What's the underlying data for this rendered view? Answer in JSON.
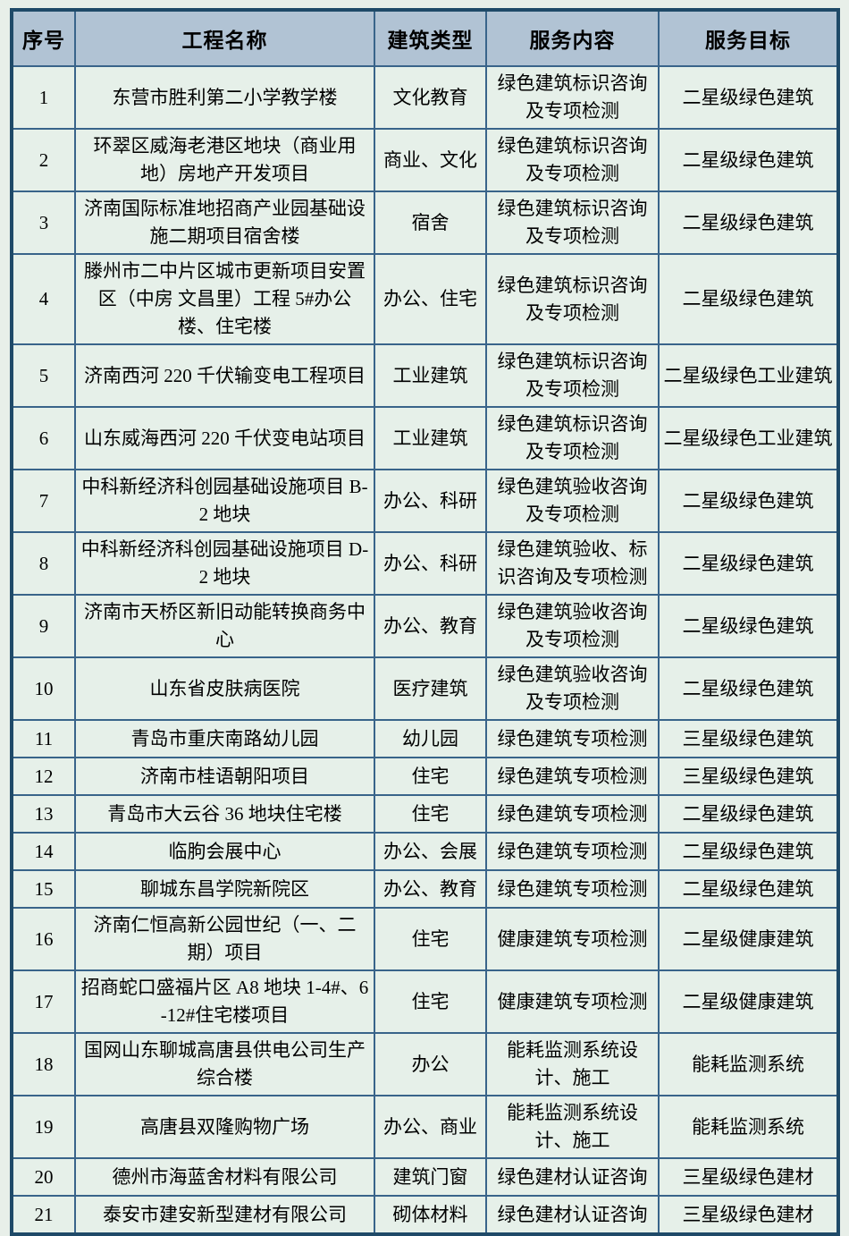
{
  "colors": {
    "page_background": "#e8efe9",
    "header_background": "#b1c3d4",
    "row_background": "#e6f0e9",
    "grid_border": "#39648a",
    "outer_border": "#1f4a68",
    "text": "#000000"
  },
  "table": {
    "columns": [
      "序号",
      "工程名称",
      "建筑类型",
      "服务内容",
      "服务目标"
    ],
    "rows": [
      {
        "no": "1",
        "name": "东营市胜利第二小学教学楼",
        "type": "文化教育",
        "service": "绿色建筑标识咨询及专项检测",
        "target": "二星级绿色建筑"
      },
      {
        "no": "2",
        "name": "环翠区威海老港区地块（商业用地）房地产开发项目",
        "type": "商业、文化",
        "service": "绿色建筑标识咨询及专项检测",
        "target": "二星级绿色建筑"
      },
      {
        "no": "3",
        "name": "济南国际标准地招商产业园基础设施二期项目宿舍楼",
        "type": "宿舍",
        "service": "绿色建筑标识咨询及专项检测",
        "target": "二星级绿色建筑"
      },
      {
        "no": "4",
        "name": "滕州市二中片区城市更新项目安置区（中房 文昌里）工程 5#办公楼、住宅楼",
        "type": "办公、住宅",
        "service": "绿色建筑标识咨询及专项检测",
        "target": "二星级绿色建筑"
      },
      {
        "no": "5",
        "name": "济南西河 220 千伏输变电工程项目",
        "type": "工业建筑",
        "service": "绿色建筑标识咨询及专项检测",
        "target": "二星级绿色工业建筑"
      },
      {
        "no": "6",
        "name": "山东威海西河 220 千伏变电站项目",
        "type": "工业建筑",
        "service": "绿色建筑标识咨询及专项检测",
        "target": "二星级绿色工业建筑"
      },
      {
        "no": "7",
        "name": "中科新经济科创园基础设施项目 B-2 地块",
        "type": "办公、科研",
        "service": "绿色建筑验收咨询及专项检测",
        "target": "二星级绿色建筑"
      },
      {
        "no": "8",
        "name": "中科新经济科创园基础设施项目 D-2 地块",
        "type": "办公、科研",
        "service": "绿色建筑验收、标识咨询及专项检测",
        "target": "二星级绿色建筑"
      },
      {
        "no": "9",
        "name": "济南市天桥区新旧动能转换商务中心",
        "type": "办公、教育",
        "service": "绿色建筑验收咨询及专项检测",
        "target": "二星级绿色建筑"
      },
      {
        "no": "10",
        "name": "山东省皮肤病医院",
        "type": "医疗建筑",
        "service": "绿色建筑验收咨询及专项检测",
        "target": "二星级绿色建筑"
      },
      {
        "no": "11",
        "name": "青岛市重庆南路幼儿园",
        "type": "幼儿园",
        "service": "绿色建筑专项检测",
        "target": "三星级绿色建筑"
      },
      {
        "no": "12",
        "name": "济南市桂语朝阳项目",
        "type": "住宅",
        "service": "绿色建筑专项检测",
        "target": "三星级绿色建筑"
      },
      {
        "no": "13",
        "name": "青岛市大云谷 36 地块住宅楼",
        "type": "住宅",
        "service": "绿色建筑专项检测",
        "target": "二星级绿色建筑"
      },
      {
        "no": "14",
        "name": "临朐会展中心",
        "type": "办公、会展",
        "service": "绿色建筑专项检测",
        "target": "二星级绿色建筑"
      },
      {
        "no": "15",
        "name": "聊城东昌学院新院区",
        "type": "办公、教育",
        "service": "绿色建筑专项检测",
        "target": "二星级绿色建筑"
      },
      {
        "no": "16",
        "name": "济南仁恒高新公园世纪（一、二期）项目",
        "type": "住宅",
        "service": "健康建筑专项检测",
        "target": "二星级健康建筑"
      },
      {
        "no": "17",
        "name": "招商蛇口盛福片区 A8 地块 1-4#、6-12#住宅楼项目",
        "type": "住宅",
        "service": "健康建筑专项检测",
        "target": "二星级健康建筑"
      },
      {
        "no": "18",
        "name": "国网山东聊城高唐县供电公司生产综合楼",
        "type": "办公",
        "service": "能耗监测系统设计、施工",
        "target": "能耗监测系统"
      },
      {
        "no": "19",
        "name": "高唐县双隆购物广场",
        "type": "办公、商业",
        "service": "能耗监测系统设计、施工",
        "target": "能耗监测系统"
      },
      {
        "no": "20",
        "name": "德州市海蓝舍材料有限公司",
        "type": "建筑门窗",
        "service": "绿色建材认证咨询",
        "target": "三星级绿色建材"
      },
      {
        "no": "21",
        "name": "泰安市建安新型建材有限公司",
        "type": "砌体材料",
        "service": "绿色建材认证咨询",
        "target": "三星级绿色建材"
      }
    ]
  }
}
